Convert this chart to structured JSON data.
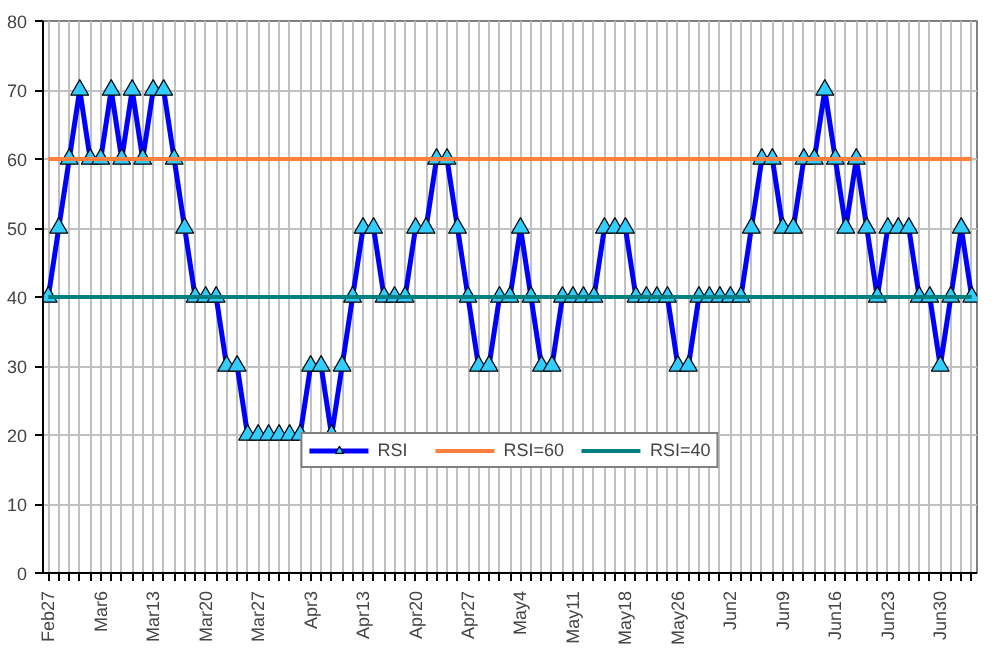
{
  "chart_data": {
    "type": "line",
    "categories": [
      "Feb27",
      null,
      null,
      null,
      null,
      "Mar6",
      null,
      null,
      null,
      null,
      "Mar13",
      null,
      null,
      null,
      null,
      "Mar20",
      null,
      null,
      null,
      null,
      "Mar27",
      null,
      null,
      null,
      null,
      "Apr3",
      null,
      null,
      null,
      null,
      "Apr13",
      null,
      null,
      null,
      null,
      "Apr20",
      null,
      null,
      null,
      null,
      "Apr27",
      null,
      null,
      null,
      null,
      "May4",
      null,
      null,
      null,
      null,
      "May11",
      null,
      null,
      null,
      null,
      "May18",
      null,
      null,
      null,
      null,
      "May26",
      null,
      null,
      null,
      null,
      "Jun2",
      null,
      null,
      null,
      null,
      "Jun9",
      null,
      null,
      null,
      null,
      "Jun16",
      null,
      null,
      null,
      null,
      "Jun23",
      null,
      null,
      null,
      null,
      "Jun30",
      null,
      null,
      null
    ],
    "series": [
      {
        "name": "RSI",
        "color": "#0000ff",
        "values": [
          40,
          50,
          60,
          70,
          60,
          60,
          70,
          60,
          70,
          60,
          70,
          70,
          60,
          50,
          40,
          40,
          40,
          30,
          30,
          20,
          20,
          20,
          20,
          20,
          20,
          30,
          30,
          20,
          30,
          40,
          50,
          50,
          40,
          40,
          40,
          50,
          50,
          60,
          60,
          50,
          40,
          30,
          30,
          40,
          40,
          50,
          40,
          30,
          30,
          40,
          40,
          40,
          40,
          50,
          50,
          50,
          40,
          40,
          40,
          40,
          30,
          30,
          40,
          40,
          40,
          40,
          40,
          50,
          60,
          60,
          50,
          50,
          60,
          60,
          70,
          60,
          50,
          60,
          50,
          40,
          50,
          50,
          50,
          40,
          40,
          30,
          40,
          50,
          40
        ]
      }
    ],
    "marker": "triangle",
    "line_style": "solid",
    "ylim": [
      0,
      80
    ],
    "yticks": [
      0,
      10,
      20,
      30,
      40,
      50,
      60,
      70,
      80
    ],
    "ref_lines": [
      {
        "axis": "y",
        "value": 60,
        "label": "RSI=60",
        "color": "#ff7f3f"
      },
      {
        "axis": "y",
        "value": 40,
        "label": "RSI=40",
        "color": "#008080"
      }
    ],
    "grid": true,
    "legend": "bottom"
  }
}
